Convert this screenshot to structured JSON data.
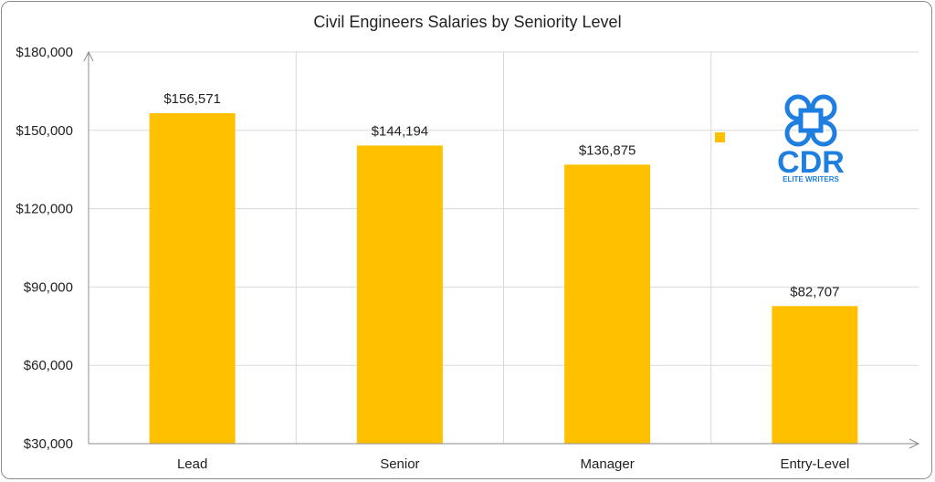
{
  "chart_data": {
    "type": "bar",
    "title": "Civil Engineers Salaries by Seniority Level",
    "categories": [
      "Lead",
      "Senior",
      "Manager",
      "Entry-Level"
    ],
    "values": [
      156571,
      144194,
      136875,
      82707
    ],
    "data_labels": [
      "$156,571",
      "$144,194",
      "$136,875",
      "$82,707"
    ],
    "ylim": [
      30000,
      180000
    ],
    "yticks": [
      30000,
      60000,
      90000,
      120000,
      150000,
      180000
    ],
    "ytick_labels": [
      "$30,000",
      "$60,000",
      "$90,000",
      "$120,000",
      "$150,000",
      "$180,000"
    ],
    "xlabel": "",
    "ylabel": "",
    "grid": true,
    "bar_color": "#FFC000",
    "grid_color": "#D9D9D9",
    "axis_color": "#8C8C8C"
  },
  "logo": {
    "name": "cdr-elite-writers-logo",
    "text": "CDR",
    "subtext": "ELITE WRITERS",
    "color": "#1E7FE0"
  }
}
